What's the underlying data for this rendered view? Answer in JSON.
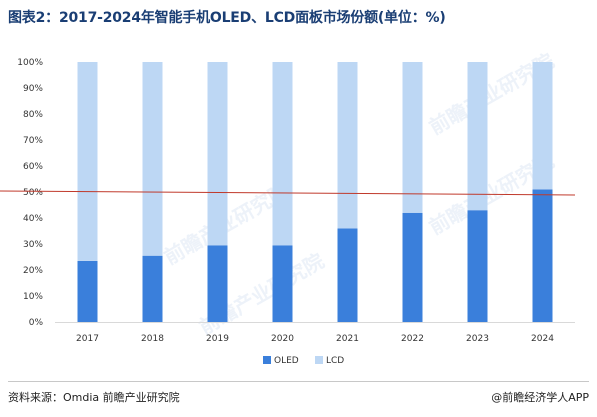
{
  "title": "图表2：2017-2024年智能手机OLED、LCD面板市场份额(单位：%)",
  "source": "资料来源：Omdia 前瞻产业研究院",
  "brand": "@前瞻经济学人APP",
  "watermark": "前瞻产业研究院",
  "colors": {
    "oled": "#3a7fdb",
    "lcd": "#bdd7f4",
    "line": "#c0392b",
    "title": "#1a3e74"
  },
  "chart_data": {
    "type": "bar",
    "stacked": true,
    "categories": [
      "2017",
      "2018",
      "2019",
      "2020",
      "2021",
      "2022",
      "2023",
      "2024"
    ],
    "series": [
      {
        "name": "OLED",
        "values": [
          23.5,
          25.5,
          29.5,
          29.5,
          36,
          42,
          43,
          51
        ]
      },
      {
        "name": "LCD",
        "values": [
          76.5,
          74.5,
          70.5,
          70.5,
          64,
          58,
          57,
          49
        ]
      }
    ],
    "reference_line": 50,
    "y_ticks": [
      "0%",
      "10%",
      "20%",
      "30%",
      "40%",
      "50%",
      "60%",
      "70%",
      "80%",
      "90%",
      "100%"
    ],
    "ylim": [
      0,
      100
    ],
    "legend_position": "bottom"
  }
}
